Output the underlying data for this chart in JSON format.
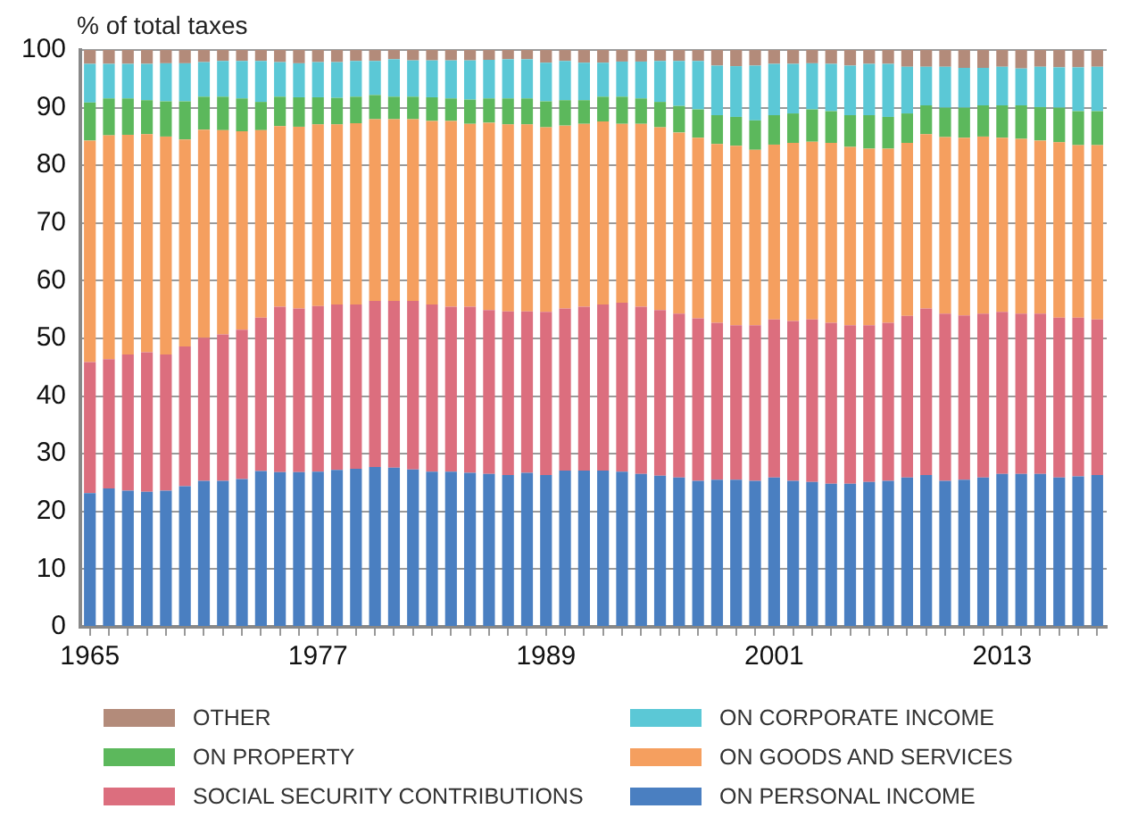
{
  "chart_data": {
    "type": "bar",
    "stacked": true,
    "ylabel": "% of total taxes",
    "ylim": [
      0,
      100
    ],
    "yticks": [
      0,
      10,
      20,
      30,
      40,
      50,
      60,
      70,
      80,
      90,
      100
    ],
    "grid": "y",
    "legend": "bottom",
    "categories": [
      "1965",
      null,
      null,
      null,
      null,
      null,
      null,
      null,
      null,
      null,
      null,
      null,
      "1977",
      null,
      null,
      null,
      null,
      null,
      null,
      null,
      null,
      null,
      null,
      null,
      "1989",
      null,
      null,
      null,
      null,
      null,
      null,
      null,
      null,
      null,
      null,
      null,
      "2001",
      null,
      null,
      null,
      null,
      null,
      null,
      null,
      null,
      null,
      null,
      null,
      "2013",
      null,
      null,
      null,
      null,
      null
    ],
    "series": [
      {
        "name": "ON PERSONAL INCOME",
        "color": "#4a7fc1",
        "values": [
          23.2,
          24.0,
          23.6,
          23.4,
          23.6,
          24.4,
          25.3,
          25.3,
          25.6,
          27.0,
          26.8,
          26.8,
          26.9,
          27.2,
          27.4,
          27.7,
          27.6,
          27.3,
          26.9,
          26.9,
          26.7,
          26.5,
          26.3,
          26.7,
          26.3,
          27.1,
          27.1,
          27.1,
          26.9,
          26.5,
          26.2,
          25.9,
          25.3,
          25.5,
          25.5,
          25.3,
          25.9,
          25.3,
          25.1,
          24.8,
          24.8,
          25.1,
          25.3,
          25.9,
          26.3,
          25.3,
          25.5,
          25.9,
          26.5,
          26.5,
          26.5,
          25.9,
          26.1,
          26.3
        ]
      },
      {
        "name": "SOCIAL SECURITY CONTRIBUTIONS",
        "color": "#dc6e7e",
        "values": [
          22.7,
          22.4,
          23.6,
          24.2,
          23.6,
          24.2,
          24.8,
          25.4,
          25.9,
          26.6,
          28.7,
          28.4,
          28.7,
          28.7,
          28.5,
          28.8,
          28.9,
          29.2,
          29.0,
          28.6,
          28.8,
          28.4,
          28.4,
          28.0,
          28.3,
          28.1,
          28.4,
          28.8,
          29.3,
          29.0,
          28.7,
          28.4,
          28.2,
          27.2,
          26.8,
          27.0,
          27.4,
          27.7,
          28.2,
          27.9,
          27.5,
          27.2,
          27.4,
          28.0,
          28.9,
          29.0,
          28.5,
          28.4,
          28.1,
          27.8,
          27.8,
          27.7,
          27.5,
          27.0
        ]
      },
      {
        "name": "ON GOODS AND SERVICES",
        "color": "#f59f5f",
        "values": [
          38.4,
          38.8,
          38.1,
          37.8,
          37.8,
          35.9,
          36.1,
          35.4,
          34.4,
          32.5,
          31.3,
          31.5,
          31.5,
          31.2,
          31.4,
          31.5,
          31.5,
          31.5,
          31.8,
          32.2,
          31.7,
          32.5,
          32.4,
          32.4,
          32.0,
          31.7,
          31.7,
          31.7,
          31.0,
          31.7,
          31.7,
          31.4,
          31.3,
          31.0,
          31.1,
          30.4,
          30.3,
          30.9,
          30.8,
          31.2,
          30.9,
          30.6,
          30.2,
          30.0,
          30.2,
          30.6,
          30.8,
          30.7,
          30.2,
          30.3,
          30.0,
          30.4,
          29.9,
          30.2
        ]
      },
      {
        "name": "ON PROPERTY",
        "color": "#5cb85c",
        "values": [
          6.6,
          6.4,
          6.3,
          5.9,
          6.1,
          6.6,
          5.7,
          5.8,
          5.7,
          4.9,
          5.1,
          5.1,
          4.7,
          4.6,
          4.6,
          4.2,
          3.9,
          3.9,
          4.1,
          3.9,
          4.2,
          4.2,
          4.5,
          4.5,
          4.5,
          4.4,
          4.1,
          4.3,
          4.7,
          4.4,
          4.4,
          4.6,
          4.9,
          5.0,
          5.0,
          5.1,
          5.1,
          5.1,
          5.6,
          5.5,
          5.5,
          5.8,
          5.5,
          5.1,
          5.0,
          5.1,
          5.2,
          5.4,
          5.6,
          5.8,
          5.8,
          6.0,
          5.9,
          5.9
        ]
      },
      {
        "name": "ON CORPORATE INCOME",
        "color": "#5bc8d6",
        "values": [
          6.7,
          6.0,
          6.0,
          6.3,
          6.6,
          6.6,
          6.0,
          6.2,
          6.5,
          7.1,
          6.0,
          5.9,
          6.1,
          6.2,
          6.2,
          5.9,
          6.5,
          6.3,
          6.4,
          6.6,
          6.8,
          6.7,
          6.8,
          6.8,
          6.7,
          6.8,
          6.5,
          5.9,
          6.1,
          6.4,
          7.1,
          7.8,
          8.4,
          8.6,
          8.8,
          9.5,
          8.9,
          8.6,
          8.0,
          8.2,
          8.6,
          8.9,
          9.2,
          8.1,
          6.7,
          7.1,
          6.9,
          6.5,
          6.7,
          6.4,
          7.0,
          7.0,
          7.6,
          7.7
        ]
      },
      {
        "name": "OTHER",
        "color": "#b38b7a",
        "values": [
          2.4,
          2.4,
          2.4,
          2.4,
          2.3,
          2.3,
          2.1,
          1.9,
          1.9,
          1.9,
          2.1,
          2.3,
          2.1,
          2.1,
          1.9,
          1.9,
          1.6,
          1.8,
          1.8,
          1.8,
          1.8,
          1.7,
          1.6,
          1.6,
          2.2,
          1.9,
          2.2,
          2.2,
          2.0,
          2.0,
          1.9,
          1.9,
          1.9,
          2.7,
          2.8,
          2.7,
          2.4,
          2.4,
          2.3,
          2.4,
          2.7,
          2.4,
          2.4,
          2.9,
          2.9,
          2.9,
          3.1,
          3.1,
          2.9,
          3.2,
          2.9,
          3.0,
          3.0,
          2.9
        ]
      }
    ]
  }
}
